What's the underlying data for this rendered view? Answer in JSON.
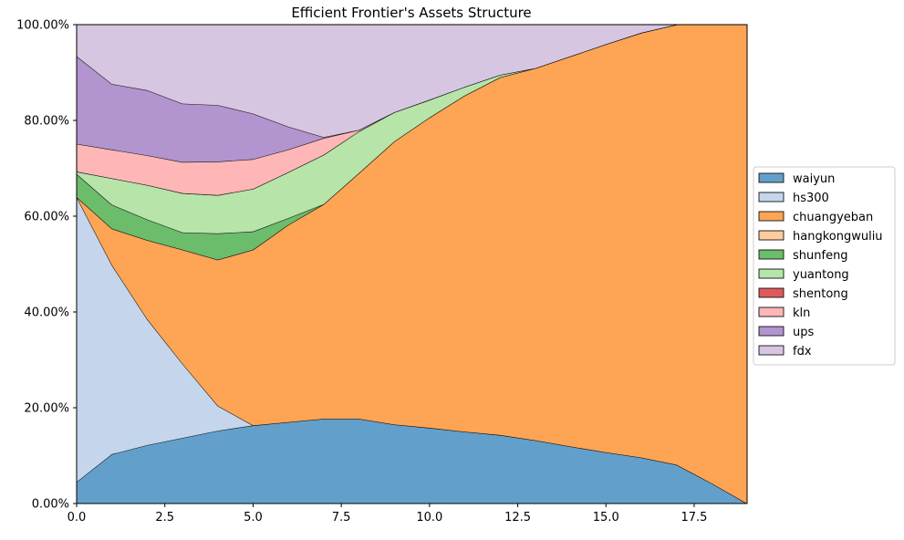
{
  "chart_data": {
    "type": "area",
    "stacked": true,
    "title": "Efficient Frontier's Assets Structure",
    "xlabel": "",
    "ylabel": "",
    "xlim": [
      0,
      19
    ],
    "ylim": [
      0,
      1
    ],
    "x_ticks": [
      0.0,
      2.5,
      5.0,
      7.5,
      10.0,
      12.5,
      15.0,
      17.5
    ],
    "x_tick_labels": [
      "0.0",
      "2.5",
      "5.0",
      "7.5",
      "10.0",
      "12.5",
      "15.0",
      "17.5"
    ],
    "y_ticks": [
      0,
      0.2,
      0.4,
      0.6,
      0.8,
      1.0
    ],
    "y_tick_labels": [
      "0.00%",
      "20.00%",
      "40.00%",
      "60.00%",
      "80.00%",
      "100.00%"
    ],
    "grid": true,
    "legend_position": "right",
    "x": [
      0,
      1,
      2,
      3,
      4,
      5,
      6,
      7,
      8,
      9,
      10,
      11,
      12,
      13,
      14,
      15,
      16,
      17,
      18,
      19
    ],
    "series": [
      {
        "name": "waiyun",
        "color": "#62a0cb",
        "values": [
          0.045,
          0.103,
          0.122,
          0.137,
          0.152,
          0.163,
          0.17,
          0.177,
          0.177,
          0.165,
          0.158,
          0.15,
          0.143,
          0.132,
          0.119,
          0.107,
          0.096,
          0.081,
          0.042,
          0.0
        ]
      },
      {
        "name": "hs300",
        "color": "#c5d6ec",
        "values": [
          0.595,
          0.395,
          0.263,
          0.155,
          0.052,
          0.0,
          0.0,
          0.0,
          0.0,
          0.0,
          0.0,
          0.0,
          0.0,
          0.0,
          0.0,
          0.0,
          0.0,
          0.0,
          0.0,
          0.0
        ]
      },
      {
        "name": "chuangyeban",
        "color": "#fea455",
        "values": [
          0.0,
          0.076,
          0.165,
          0.238,
          0.305,
          0.367,
          0.412,
          0.448,
          0.513,
          0.591,
          0.648,
          0.702,
          0.747,
          0.777,
          0.815,
          0.852,
          0.887,
          0.919,
          0.958,
          1.0
        ]
      },
      {
        "name": "hangkongwuliu",
        "color": "#ffcc9e",
        "values": [
          0,
          0,
          0,
          0,
          0,
          0,
          0,
          0,
          0,
          0,
          0,
          0,
          0,
          0,
          0,
          0,
          0,
          0,
          0,
          0
        ]
      },
      {
        "name": "shunfeng",
        "color": "#6bbc6b",
        "values": [
          0.048,
          0.05,
          0.043,
          0.036,
          0.055,
          0.038,
          0.014,
          0.0,
          0.0,
          0.0,
          0.0,
          0.0,
          0.0,
          0.0,
          0.0,
          0.0,
          0.0,
          0.0,
          0.0,
          0.0
        ]
      },
      {
        "name": "yuantong",
        "color": "#b7e4a9",
        "values": [
          0.005,
          0.055,
          0.072,
          0.082,
          0.08,
          0.089,
          0.096,
          0.103,
          0.087,
          0.061,
          0.037,
          0.018,
          0.005,
          0.0,
          0.0,
          0.0,
          0.0,
          0.0,
          0.0,
          0.0
        ]
      },
      {
        "name": "shentong",
        "color": "#de5a5b",
        "values": [
          0,
          0,
          0,
          0,
          0,
          0,
          0,
          0,
          0,
          0,
          0,
          0,
          0,
          0,
          0,
          0,
          0,
          0,
          0,
          0
        ]
      },
      {
        "name": "kln",
        "color": "#feb6b6",
        "values": [
          0.058,
          0.06,
          0.062,
          0.065,
          0.07,
          0.062,
          0.047,
          0.035,
          0.003,
          0.0,
          0.0,
          0.0,
          0.0,
          0.0,
          0.0,
          0.0,
          0.0,
          0.0,
          0.0,
          0.0
        ]
      },
      {
        "name": "ups",
        "color": "#b294cf",
        "values": [
          0.183,
          0.137,
          0.136,
          0.122,
          0.118,
          0.095,
          0.048,
          0.002,
          0.0,
          0.0,
          0.0,
          0.0,
          0.0,
          0.0,
          0.0,
          0.0,
          0.0,
          0.0,
          0.0,
          0.0
        ]
      },
      {
        "name": "fdx",
        "color": "#d6c6e1",
        "values": [
          0.066,
          0.124,
          0.137,
          0.165,
          0.168,
          0.186,
          0.213,
          0.235,
          0.22,
          0.183,
          0.157,
          0.13,
          0.105,
          0.091,
          0.066,
          0.041,
          0.017,
          0.0,
          0.0,
          0.0
        ]
      }
    ]
  }
}
